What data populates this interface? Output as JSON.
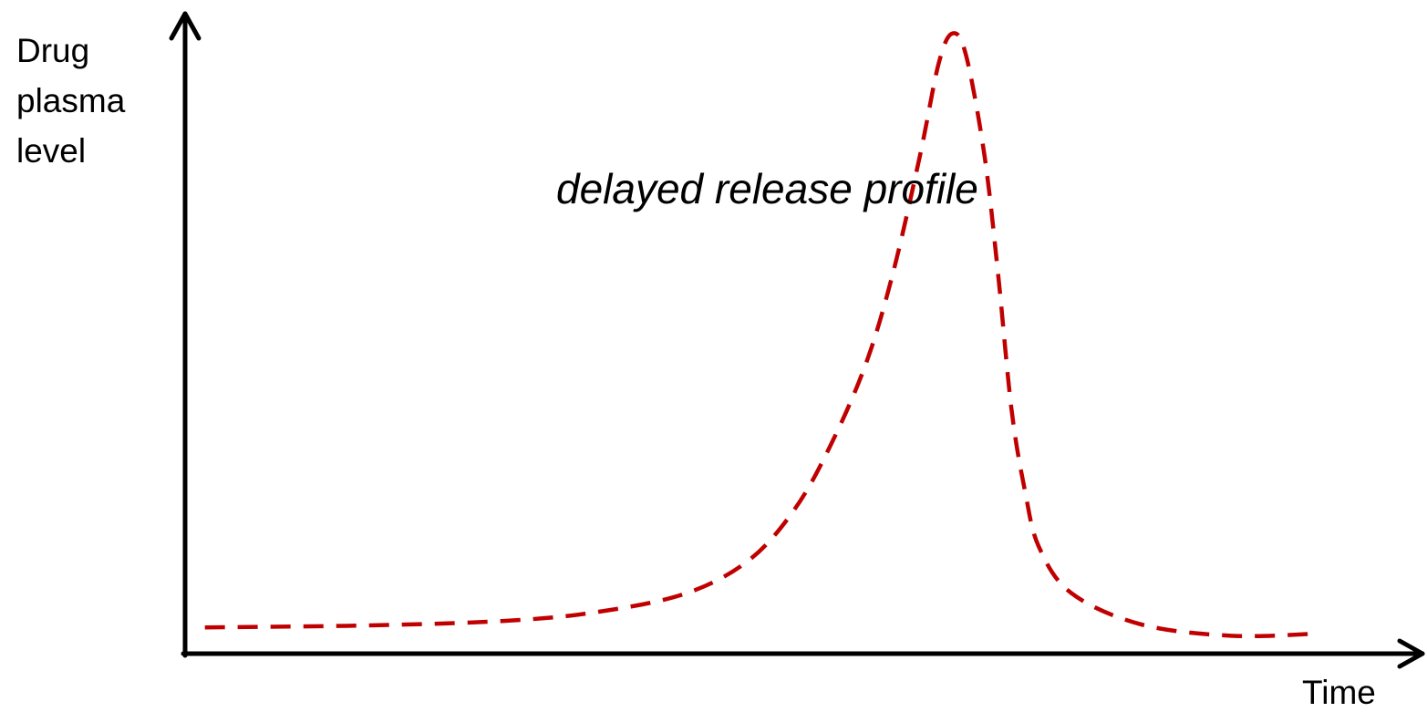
{
  "chart_data": {
    "type": "line",
    "y_label": "Drug plasma level",
    "x_label": "Time",
    "annotation": "delayed release profile",
    "x": [
      1.6,
      14.5,
      25.6,
      32.9,
      40.3,
      45.5,
      49.2,
      52.1,
      55.0,
      57.2,
      59.4,
      60.9,
      62.0,
      63.1,
      64.6,
      65.7,
      66.8,
      67.9,
      69.0,
      71.6,
      77.2,
      84.5,
      91.2
    ],
    "series": [
      {
        "color": "#c00000",
        "dashed": true,
        "values": [
          4.1,
          4.4,
          5.1,
          6.4,
          9.3,
          14.5,
          22.4,
          32.3,
          45.2,
          59.4,
          77.9,
          92.2,
          96.9,
          93.6,
          77.9,
          59.4,
          38.0,
          25.2,
          16.7,
          9.5,
          4.6,
          2.8,
          3.1
        ]
      }
    ],
    "xlim": [
      0,
      100
    ],
    "ylim": [
      0,
      100
    ]
  }
}
